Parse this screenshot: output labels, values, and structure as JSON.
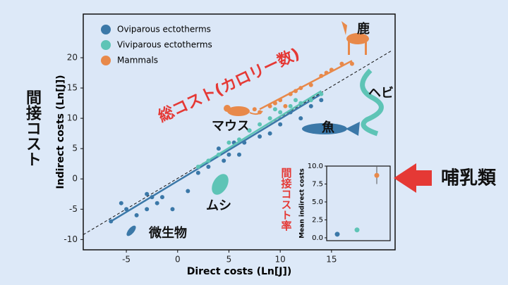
{
  "chart_data": [
    {
      "type": "scatter",
      "xlabel": "Direct costs (Ln[J])",
      "ylabel": "Indirect costs (Ln[J])",
      "xlim": [
        -9.2,
        21.2
      ],
      "ylim": [
        -11.7,
        27.2
      ],
      "xticks": [
        -5,
        0,
        5,
        10,
        15
      ],
      "yticks": [
        -10,
        -5,
        0,
        5,
        10,
        15,
        20
      ],
      "series": [
        {
          "name": "Oviparous ectotherms",
          "color": "#3b78a8",
          "x": [
            -6.5,
            -5.5,
            -5,
            -4,
            -3,
            -2.5,
            -2,
            -1.5,
            -3,
            -0.5,
            1,
            2,
            3,
            4,
            4.5,
            5,
            5.5,
            6,
            6.5,
            7,
            8,
            9,
            10,
            11,
            12,
            13,
            14
          ],
          "y": [
            -7,
            -4,
            -5,
            -6,
            -5,
            -3,
            -4,
            -3,
            -2.5,
            -5,
            -2,
            1,
            2,
            5,
            3,
            4,
            6,
            4,
            6,
            8,
            7,
            7.5,
            9,
            11,
            10,
            12,
            13
          ],
          "fit_x": [
            -6.5,
            14
          ],
          "fit_y": [
            -7,
            14
          ]
        },
        {
          "name": "Viviparous ectotherms",
          "color": "#5ec4b6",
          "x": [
            2,
            3,
            4,
            5,
            6,
            7,
            8,
            9,
            9.5,
            10,
            11,
            11.5,
            12,
            13,
            14
          ],
          "y": [
            2,
            3,
            4,
            6,
            6.5,
            8,
            9,
            10,
            11.5,
            11,
            12,
            13,
            12.5,
            13,
            14
          ],
          "fit_x": [
            2,
            14
          ],
          "fit_y": [
            2,
            14.5
          ]
        },
        {
          "name": "Mammals",
          "color": "#e8894a",
          "x": [
            7.5,
            8,
            9,
            9.5,
            10,
            10.5,
            11,
            11.5,
            12,
            13,
            14,
            14.5,
            15,
            16,
            17
          ],
          "y": [
            11.5,
            11,
            12,
            12.5,
            13,
            12,
            14,
            14.5,
            15,
            15.5,
            17,
            17.5,
            18,
            19,
            19
          ],
          "fit_x": [
            8,
            17
          ],
          "fit_y": [
            11.5,
            19.5
          ]
        }
      ],
      "reference_line": {
        "x": [
          -9.2,
          20.9
        ],
        "y": [
          -9.2,
          21.2
        ]
      }
    },
    {
      "type": "errorbar",
      "ylabel": "Mean indirect costs",
      "categories": [
        null,
        null,
        null
      ],
      "values": [
        0.5,
        1.1,
        8.7
      ],
      "errors": [
        0.2,
        0.2,
        1.2
      ],
      "colors": [
        "#3b78a8",
        "#5ec4b6",
        "#e8894a"
      ],
      "ylim": [
        -0.4,
        10.0
      ],
      "yticks": [
        {
          "value": 0,
          "label": "0.0"
        },
        {
          "value": 2.5,
          "label": "2.5"
        },
        {
          "value": 5,
          "label": "5.0"
        },
        {
          "value": 7.5,
          "label": "7.5"
        },
        {
          "value": 10,
          "label": "10.0"
        }
      ]
    }
  ],
  "annotations": {
    "indirect_cost": "間接コスト",
    "total_cost": "総コスト(カロリー数)",
    "mouse": "マウス",
    "fish": "魚",
    "snake": "ヘビ",
    "deer": "鹿",
    "insect": "ムシ",
    "microbe": "微生物",
    "indirect_rate": "間接コスト率",
    "mammals": "哺乳類"
  }
}
